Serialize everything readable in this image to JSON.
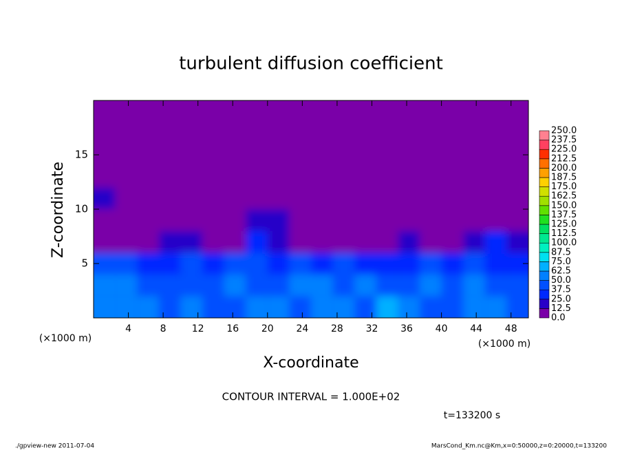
{
  "chart_data": {
    "type": "contour",
    "title": "turbulent diffusion coefficient",
    "xlabel": "X-coordinate",
    "ylabel": "Z-coordinate",
    "x_unit": "(×1000 m)",
    "y_unit": "(×1000 m)",
    "contour_interval": "CONTOUR INTERVAL = 1.000E+02",
    "time_label": "t=133200 s",
    "footer_left": "./gpview-new   2011-07-04",
    "footer_right": "MarsCond_Km.nc@Km,x=0:50000,z=0:20000,t=133200",
    "xlim": [
      0,
      50
    ],
    "ylim": [
      0,
      20
    ],
    "xticks": [
      4,
      8,
      12,
      16,
      20,
      24,
      28,
      32,
      36,
      40,
      44,
      48
    ],
    "yticks": [
      5,
      10,
      15
    ],
    "x": [
      1.25,
      3.75,
      6.25,
      8.75,
      11.25,
      13.75,
      16.25,
      18.75,
      21.25,
      23.75,
      26.25,
      28.75,
      31.25,
      33.75,
      36.25,
      38.75,
      41.25,
      43.75,
      46.25,
      48.75
    ],
    "z": [
      1,
      3,
      5,
      7,
      9,
      11,
      13,
      15,
      17,
      19
    ],
    "values": [
      [
        60,
        55,
        50,
        45,
        50,
        40,
        45,
        55,
        50,
        45,
        60,
        50,
        45,
        70,
        50,
        45,
        40,
        55,
        50,
        45
      ],
      [
        55,
        50,
        45,
        40,
        45,
        40,
        50,
        45,
        40,
        55,
        50,
        45,
        50,
        45,
        40,
        50,
        45,
        50,
        45,
        40
      ],
      [
        40,
        45,
        30,
        35,
        40,
        35,
        45,
        40,
        35,
        40,
        35,
        40,
        35,
        30,
        35,
        40,
        35,
        40,
        35,
        35
      ],
      [
        5,
        10,
        5,
        20,
        15,
        5,
        10,
        25,
        20,
        5,
        5,
        5,
        5,
        5,
        15,
        5,
        10,
        15,
        25,
        20
      ],
      [
        5,
        5,
        5,
        5,
        5,
        5,
        5,
        20,
        15,
        5,
        5,
        5,
        5,
        5,
        5,
        5,
        5,
        5,
        5,
        5
      ],
      [
        15,
        5,
        5,
        5,
        5,
        5,
        5,
        5,
        5,
        5,
        5,
        5,
        5,
        5,
        10,
        5,
        5,
        5,
        5,
        5
      ],
      [
        5,
        5,
        5,
        5,
        5,
        5,
        5,
        5,
        5,
        5,
        5,
        5,
        5,
        5,
        5,
        5,
        5,
        5,
        5,
        5
      ],
      [
        5,
        5,
        5,
        5,
        5,
        5,
        5,
        5,
        5,
        5,
        5,
        5,
        5,
        5,
        5,
        5,
        5,
        5,
        5,
        5
      ],
      [
        5,
        5,
        5,
        5,
        5,
        5,
        5,
        5,
        5,
        5,
        5,
        5,
        5,
        5,
        5,
        5,
        5,
        5,
        5,
        5
      ],
      [
        5,
        5,
        5,
        5,
        5,
        5,
        5,
        5,
        5,
        5,
        5,
        5,
        5,
        5,
        5,
        5,
        5,
        5,
        5,
        5
      ]
    ],
    "levels": [
      {
        "value": 0,
        "label": "0.0"
      },
      {
        "value": 12.5,
        "label": "12.5"
      },
      {
        "value": 25,
        "label": "25.0"
      },
      {
        "value": 37.5,
        "label": "37.5"
      },
      {
        "value": 50,
        "label": "50.0"
      },
      {
        "value": 62.5,
        "label": "62.5"
      },
      {
        "value": 75,
        "label": "75.0"
      },
      {
        "value": 87.5,
        "label": "87.5"
      },
      {
        "value": 100,
        "label": "100.0"
      },
      {
        "value": 112.5,
        "label": "112.5"
      },
      {
        "value": 125,
        "label": "125.0"
      },
      {
        "value": 137.5,
        "label": "137.5"
      },
      {
        "value": 150,
        "label": "150.0"
      },
      {
        "value": 162.5,
        "label": "162.5"
      },
      {
        "value": 175,
        "label": "175.0"
      },
      {
        "value": 187.5,
        "label": "187.5"
      },
      {
        "value": 200,
        "label": "200.0"
      },
      {
        "value": 212.5,
        "label": "212.5"
      },
      {
        "value": 225,
        "label": "225.0"
      },
      {
        "value": 237.5,
        "label": "237.5"
      },
      {
        "value": 250,
        "label": "250.0"
      }
    ],
    "colors": [
      "#7a00a8",
      "#2800c8",
      "#0028ff",
      "#0050ff",
      "#0080ff",
      "#00b0ff",
      "#00e0f0",
      "#00f0c0",
      "#00e890",
      "#00e060",
      "#20e020",
      "#60e000",
      "#a0e000",
      "#d0e000",
      "#ffd000",
      "#ffa000",
      "#ff7000",
      "#ff3000",
      "#ff4060",
      "#ff8090"
    ]
  }
}
